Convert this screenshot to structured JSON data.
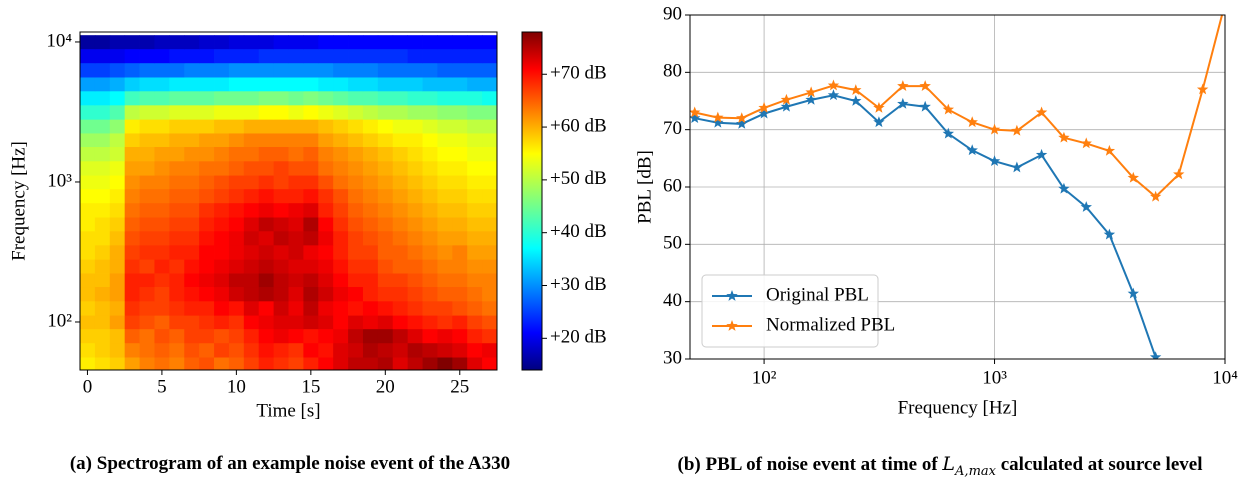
{
  "chart_data": [
    {
      "type": "heatmap",
      "xlabel": "Time [s]",
      "ylabel": "Frequency [Hz]",
      "caption": "(a) Spectrogram of an example noise event of the A330",
      "x": [
        0,
        1,
        2,
        3,
        4,
        5,
        6,
        7,
        8,
        9,
        10,
        11,
        12,
        13,
        14,
        15,
        16,
        17,
        18,
        19,
        20,
        21,
        22,
        23,
        24,
        25,
        26,
        27
      ],
      "y": [
        50,
        63,
        80,
        100,
        125,
        160,
        200,
        250,
        315,
        400,
        500,
        630,
        800,
        1000,
        1250,
        1600,
        2000,
        2500,
        3150,
        4000,
        5000,
        6300,
        8000,
        10000
      ],
      "xlim": [
        -0.5,
        27.5
      ],
      "xticks": [
        0,
        5,
        10,
        15,
        20,
        25
      ],
      "ylim": [
        45.4,
        11780
      ],
      "log_y": true,
      "yticks": [
        {
          "value": 100,
          "label": "10²"
        },
        {
          "value": 1000,
          "label": "10³"
        },
        {
          "value": 10000,
          "label": "10⁴"
        }
      ],
      "colormap": "jet",
      "zlim": [
        14,
        78
      ],
      "zticks": [
        {
          "value": 20,
          "label": "+20 dB"
        },
        {
          "value": 30,
          "label": "+30 dB"
        },
        {
          "value": 40,
          "label": "+40 dB"
        },
        {
          "value": 50,
          "label": "+50 dB"
        },
        {
          "value": 60,
          "label": "+60 dB"
        },
        {
          "value": 70,
          "label": "+70 dB"
        }
      ],
      "values": [
        [
          55,
          56,
          57,
          60,
          62,
          63,
          62,
          64,
          65,
          63,
          64,
          66,
          68,
          67,
          66,
          68,
          70,
          72,
          74,
          74,
          75,
          72,
          74,
          76,
          78,
          76,
          72,
          70
        ],
        [
          56,
          57,
          58,
          62,
          63,
          64,
          63,
          65,
          64,
          66,
          65,
          67,
          69,
          68,
          67,
          70,
          69,
          72,
          73,
          75,
          74,
          73,
          75,
          74,
          73,
          72,
          70,
          71
        ],
        [
          57,
          57,
          58,
          64,
          63,
          65,
          64,
          66,
          66,
          65,
          66,
          68,
          70,
          71,
          70,
          69,
          70,
          71,
          74,
          76,
          76,
          74,
          72,
          70,
          71,
          70,
          68,
          67
        ],
        [
          58,
          58,
          60,
          66,
          65,
          64,
          66,
          66,
          67,
          68,
          67,
          70,
          71,
          72,
          72,
          73,
          72,
          70,
          72,
          71,
          72,
          70,
          69,
          68,
          67,
          68,
          66,
          65
        ],
        [
          57,
          58,
          59,
          67,
          66,
          66,
          67,
          68,
          68,
          70,
          69,
          72,
          70,
          73,
          71,
          74,
          71,
          70,
          69,
          70,
          69,
          68,
          67,
          66,
          66,
          65,
          64,
          63
        ],
        [
          58,
          59,
          60,
          68,
          67,
          66,
          68,
          69,
          70,
          71,
          73,
          74,
          75,
          74,
          72,
          75,
          73,
          71,
          70,
          68,
          67,
          67,
          66,
          65,
          64,
          64,
          63,
          62
        ],
        [
          58,
          58,
          60,
          68,
          68,
          67,
          68,
          70,
          71,
          72,
          74,
          74,
          76,
          74,
          73,
          74,
          72,
          70,
          68,
          68,
          66,
          66,
          65,
          64,
          63,
          63,
          62,
          62
        ],
        [
          57,
          58,
          59,
          67,
          66,
          68,
          67,
          69,
          70,
          71,
          72,
          73,
          74,
          73,
          72,
          72,
          71,
          69,
          67,
          67,
          65,
          64,
          64,
          63,
          62,
          62,
          61,
          61
        ],
        [
          56,
          57,
          59,
          66,
          67,
          67,
          68,
          68,
          70,
          70,
          71,
          72,
          73,
          72,
          73,
          71,
          70,
          68,
          66,
          66,
          64,
          64,
          63,
          62,
          61,
          62,
          60,
          60
        ],
        [
          56,
          56,
          58,
          65,
          66,
          66,
          67,
          67,
          69,
          70,
          71,
          73,
          72,
          74,
          73,
          74,
          71,
          68,
          66,
          65,
          64,
          63,
          62,
          61,
          60,
          60,
          59,
          59
        ],
        [
          55,
          56,
          57,
          64,
          65,
          65,
          66,
          66,
          68,
          69,
          70,
          72,
          74,
          73,
          72,
          75,
          70,
          67,
          65,
          64,
          63,
          62,
          61,
          60,
          59,
          59,
          58,
          58
        ],
        [
          55,
          55,
          56,
          63,
          64,
          64,
          65,
          65,
          67,
          68,
          69,
          70,
          71,
          70,
          71,
          72,
          68,
          66,
          64,
          63,
          62,
          61,
          60,
          59,
          58,
          58,
          57,
          57
        ],
        [
          54,
          54,
          55,
          62,
          63,
          63,
          64,
          64,
          65,
          66,
          67,
          68,
          69,
          68,
          68,
          69,
          67,
          65,
          63,
          62,
          61,
          60,
          59,
          58,
          57,
          57,
          56,
          56
        ],
        [
          53,
          53,
          54,
          61,
          62,
          62,
          63,
          63,
          64,
          65,
          66,
          66,
          67,
          66,
          67,
          67,
          65,
          63,
          62,
          61,
          60,
          59,
          58,
          57,
          56,
          56,
          55,
          55
        ],
        [
          52,
          52,
          53,
          60,
          60,
          61,
          62,
          62,
          63,
          63,
          64,
          65,
          65,
          66,
          65,
          65,
          63,
          62,
          61,
          60,
          59,
          58,
          57,
          56,
          55,
          55,
          54,
          54
        ],
        [
          50,
          50,
          51,
          59,
          59,
          60,
          60,
          61,
          61,
          62,
          63,
          63,
          64,
          64,
          63,
          64,
          62,
          61,
          60,
          59,
          58,
          57,
          56,
          55,
          54,
          54,
          53,
          53
        ],
        [
          48,
          48,
          50,
          57,
          58,
          58,
          59,
          59,
          60,
          60,
          61,
          62,
          62,
          62,
          62,
          62,
          60,
          59,
          58,
          57,
          56,
          55,
          55,
          54,
          53,
          53,
          52,
          52
        ],
        [
          45,
          45,
          47,
          55,
          56,
          56,
          57,
          57,
          57,
          58,
          58,
          59,
          59,
          59,
          59,
          59,
          58,
          57,
          56,
          55,
          54,
          53,
          53,
          52,
          51,
          51,
          50,
          50
        ],
        [
          41,
          41,
          43,
          50,
          51,
          51,
          52,
          52,
          52,
          53,
          53,
          53,
          54,
          54,
          53,
          54,
          53,
          52,
          51,
          50,
          49,
          49,
          48,
          48,
          47,
          47,
          46,
          46
        ],
        [
          37,
          37,
          38,
          42,
          43,
          43,
          44,
          44,
          44,
          45,
          45,
          45,
          46,
          46,
          45,
          46,
          45,
          44,
          43,
          43,
          42,
          42,
          41,
          41,
          40,
          40,
          40,
          39
        ],
        [
          32,
          32,
          33,
          35,
          36,
          36,
          37,
          37,
          37,
          37,
          38,
          38,
          38,
          38,
          38,
          38,
          37,
          37,
          36,
          36,
          35,
          35,
          35,
          34,
          34,
          34,
          33,
          33
        ],
        [
          26,
          26,
          27,
          28,
          29,
          29,
          29,
          30,
          30,
          30,
          31,
          31,
          31,
          31,
          31,
          31,
          31,
          30,
          30,
          30,
          29,
          29,
          29,
          29,
          28,
          28,
          28,
          28
        ],
        [
          21,
          21,
          21,
          22,
          22,
          22,
          23,
          23,
          23,
          24,
          24,
          24,
          25,
          25,
          25,
          25,
          25,
          25,
          25,
          25,
          25,
          25,
          24,
          24,
          24,
          24,
          24,
          24
        ],
        [
          16,
          16,
          17,
          17,
          17,
          18,
          18,
          18,
          19,
          19,
          20,
          20,
          20,
          21,
          21,
          21,
          22,
          22,
          22,
          22,
          22,
          22,
          22,
          22,
          22,
          22,
          22,
          22
        ]
      ]
    },
    {
      "type": "line",
      "xlabel": "Frequency [Hz]",
      "ylabel": "PBL [dB]",
      "caption": {
        "before": "(b) PBL of noise event at time of",
        "symbol": "L",
        "subscript": "A,max",
        "after": "calculated at source level"
      },
      "x": [
        50,
        63,
        80,
        100,
        125,
        160,
        200,
        250,
        315,
        400,
        500,
        630,
        800,
        1000,
        1250,
        1600,
        2000,
        2500,
        3150,
        4000,
        5000,
        6300,
        8000,
        10000
      ],
      "xlim": [
        47.7,
        10000
      ],
      "log_x": true,
      "xticks": [
        {
          "value": 100,
          "label": "10²"
        },
        {
          "value": 1000,
          "label": "10³"
        },
        {
          "value": 10000,
          "label": "10⁴"
        }
      ],
      "ylim": [
        30,
        90
      ],
      "yticks": [
        30,
        40,
        50,
        60,
        70,
        80,
        90
      ],
      "grid": true,
      "legend": "lower left",
      "series": [
        {
          "name": "Original PBL",
          "color": "#1f77b4",
          "values": [
            72,
            71.2,
            71,
            72.8,
            74,
            75.2,
            76,
            75,
            71.3,
            74.5,
            74,
            69.3,
            66.4,
            64.5,
            63.4,
            65.6,
            59.7,
            56.5,
            51.7,
            41.4,
            30.3,
            null,
            null,
            null
          ]
        },
        {
          "name": "Normalized PBL",
          "color": "#ff7f0e",
          "values": [
            73,
            72.1,
            72,
            73.8,
            75.2,
            76.5,
            77.7,
            76.9,
            73.8,
            77.6,
            77.6,
            73.5,
            71.3,
            70,
            69.8,
            73,
            68.6,
            67.6,
            66.3,
            61.6,
            58.3,
            62.2,
            77,
            92
          ]
        }
      ]
    }
  ]
}
